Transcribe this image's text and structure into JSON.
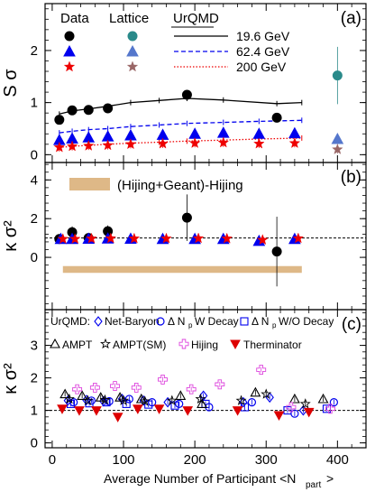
{
  "chart_data": [
    {
      "type": "scatter",
      "panel_label": "(a)",
      "ylabel": "S σ",
      "yticks": [
        "0",
        "1",
        "2"
      ],
      "ylim": [
        -0.15,
        2.9
      ],
      "xlim": [
        -10,
        440
      ],
      "legend": {
        "data_header": "Data",
        "lattice_header": "Lattice",
        "urqmd_header": "UrQMD",
        "energies": [
          "19.6 GeV",
          "62.4 GeV",
          "200 GeV"
        ]
      },
      "series": [
        {
          "name": "19.6 GeV",
          "source": "Data",
          "color": "#000000",
          "marker": "circle",
          "x": [
            10,
            28,
            51,
            78,
            189,
            315
          ],
          "y": [
            0.67,
            0.85,
            0.86,
            0.89,
            1.15,
            0.71
          ]
        },
        {
          "name": "62.4 GeV",
          "source": "Data",
          "color": "#0000ee",
          "marker": "triangle",
          "x": [
            10,
            28,
            51,
            78,
            110,
            155,
            200,
            240,
            290,
            340
          ],
          "y": [
            0.28,
            0.31,
            0.33,
            0.35,
            0.37,
            0.38,
            0.4,
            0.42,
            0.4,
            0.41
          ]
        },
        {
          "name": "200 GeV",
          "source": "Data",
          "color": "#ee0000",
          "marker": "star",
          "x": [
            10,
            28,
            51,
            78,
            110,
            155,
            200,
            240,
            290,
            340
          ],
          "y": [
            0.14,
            0.16,
            0.17,
            0.18,
            0.2,
            0.21,
            0.22,
            0.23,
            0.21,
            0.22
          ]
        },
        {
          "name": "19.6 GeV",
          "source": "Lattice",
          "color": "#2a8a8a",
          "marker": "circle",
          "x": [
            400
          ],
          "y": [
            1.52
          ],
          "yerr": [
            0.55
          ]
        },
        {
          "name": "62.4 GeV",
          "source": "Lattice",
          "color": "#5577cc",
          "marker": "triangle",
          "x": [
            400
          ],
          "y": [
            0.3
          ]
        },
        {
          "name": "200 GeV",
          "source": "Lattice",
          "color": "#996666",
          "marker": "star",
          "x": [
            400
          ],
          "y": [
            0.1
          ]
        }
      ],
      "lines": [
        {
          "name": "19.6 GeV",
          "source": "UrQMD",
          "color": "#000000",
          "dash": "solid",
          "x": [
            10,
            28,
            51,
            78,
            110,
            150,
            189,
            240,
            315,
            350
          ],
          "y": [
            0.78,
            0.84,
            0.88,
            0.93,
            1.0,
            1.04,
            1.08,
            1.05,
            0.98,
            1.0
          ]
        },
        {
          "name": "62.4 GeV",
          "source": "UrQMD",
          "color": "#0000ee",
          "dash": "dashed",
          "x": [
            10,
            28,
            51,
            78,
            110,
            150,
            189,
            240,
            290,
            350
          ],
          "y": [
            0.42,
            0.45,
            0.48,
            0.5,
            0.54,
            0.57,
            0.6,
            0.62,
            0.64,
            0.66
          ]
        },
        {
          "name": "200 GeV",
          "source": "UrQMD",
          "color": "#ee0000",
          "dash": "dotted",
          "x": [
            10,
            28,
            51,
            78,
            110,
            150,
            189,
            240,
            290,
            350
          ],
          "y": [
            0.14,
            0.16,
            0.18,
            0.2,
            0.22,
            0.24,
            0.26,
            0.28,
            0.3,
            0.32
          ]
        }
      ]
    },
    {
      "type": "scatter",
      "panel_label": "(b)",
      "ylabel": "κ σ²",
      "yticks": [
        "0",
        "2",
        "4"
      ],
      "ylim": [
        -2.7,
        4.9
      ],
      "xlim": [
        -10,
        440
      ],
      "reference_line": 1,
      "band": {
        "label": "(Hijing+Geant)-Hijing",
        "color": "#deb887",
        "x": [
          15,
          350
        ],
        "y": [
          -0.8,
          -0.45
        ]
      },
      "series": [
        {
          "name": "19.6 GeV",
          "color": "#000000",
          "marker": "circle",
          "x": [
            10,
            28,
            51,
            78,
            189,
            315
          ],
          "y": [
            0.95,
            1.3,
            1.0,
            1.35,
            2.05,
            0.3
          ],
          "yerr": [
            0.25,
            0.3,
            0.2,
            0.3,
            1.2,
            1.8
          ]
        },
        {
          "name": "62.4 GeV",
          "color": "#0000ee",
          "marker": "triangle",
          "x": [
            12,
            28,
            51,
            78,
            110,
            155,
            200,
            240,
            290,
            340
          ],
          "y": [
            0.95,
            0.95,
            0.96,
            0.97,
            0.96,
            0.95,
            0.95,
            0.95,
            0.85,
            0.95
          ]
        },
        {
          "name": "200 GeV",
          "color": "#ee0000",
          "marker": "star",
          "x": [
            15,
            32,
            55,
            82,
            115,
            160,
            205,
            245,
            295,
            345
          ],
          "y": [
            0.95,
            0.95,
            0.97,
            0.98,
            0.97,
            0.97,
            0.98,
            0.97,
            0.9,
            0.98
          ]
        }
      ]
    },
    {
      "type": "scatter",
      "panel_label": "(c)",
      "ylabel": "κ σ²",
      "yticks": [
        "0",
        "1",
        "2",
        "3"
      ],
      "ylim": [
        -0.15,
        4.1
      ],
      "xlim": [
        -10,
        440
      ],
      "xticks": [
        "0",
        "100",
        "200",
        "300",
        "400"
      ],
      "xlabel": "Average Number of Participant <N",
      "xlabel_sub": "part",
      "xlabel_end": ">",
      "reference_line": 1,
      "legend_header": "UrQMD:",
      "legend": [
        "Net-Baryon",
        "Δ N",
        "W Decay",
        "Δ N",
        "W/O Decay",
        "AMPT",
        "AMPT(SM)",
        "Hijing",
        "Therminator"
      ],
      "legend_sub": "p",
      "series": [
        {
          "name": "Net-Baryon",
          "color": "#0000ee",
          "marker": "diamond",
          "x": [
            22,
            48,
            72,
            98,
            128,
            162,
            212,
            268,
            305,
            352
          ],
          "y": [
            1.3,
            1.32,
            1.28,
            1.35,
            1.3,
            1.25,
            1.45,
            1.25,
            1.4,
            1.0
          ]
        },
        {
          "name": "Δ Np W Decay",
          "color": "#0000ee",
          "marker": "circle-open",
          "x": [
            30,
            55,
            80,
            108,
            140,
            178,
            220,
            280,
            340,
            395
          ],
          "y": [
            1.25,
            1.3,
            1.28,
            1.35,
            1.25,
            1.2,
            1.1,
            1.25,
            0.9,
            1.25
          ]
        },
        {
          "name": "Δ Np W/O Decay",
          "color": "#0000ee",
          "marker": "square-open",
          "x": [
            26,
            52,
            76,
            104,
            135,
            172,
            215,
            270,
            330,
            385
          ],
          "y": [
            1.2,
            1.22,
            1.25,
            1.2,
            1.18,
            1.15,
            1.2,
            1.1,
            1.0,
            1.05
          ]
        },
        {
          "name": "AMPT",
          "color": "#000000",
          "marker": "triangle-open",
          "x": [
            18,
            42,
            68,
            95,
            125,
            180,
            210,
            285,
            340,
            380
          ],
          "y": [
            1.5,
            1.45,
            1.4,
            1.4,
            1.35,
            1.45,
            1.2,
            1.55,
            1.35,
            1.35
          ]
        },
        {
          "name": "AMPT(SM)",
          "color": "#000000",
          "marker": "star-open",
          "x": [
            24,
            50,
            74,
            100,
            130,
            168,
            208,
            265,
            300,
            355
          ],
          "y": [
            1.35,
            1.3,
            1.32,
            1.3,
            1.28,
            1.3,
            1.35,
            1.3,
            1.5,
            1.2
          ]
        },
        {
          "name": "Hijing",
          "color": "#dd44dd",
          "marker": "cross-open",
          "x": [
            35,
            60,
            88,
            118,
            155,
            195,
            235,
            293,
            335,
            390
          ],
          "y": [
            1.65,
            1.7,
            1.75,
            1.7,
            1.95,
            1.65,
            1.8,
            2.25,
            1.1,
            1.05
          ]
        },
        {
          "name": "Therminator",
          "color": "#dd0000",
          "marker": "triangle-down",
          "x": [
            14,
            38,
            62,
            92,
            120,
            150,
            190,
            260,
            318,
            360
          ],
          "y": [
            1.05,
            1.0,
            1.0,
            0.8,
            1.05,
            1.05,
            1.0,
            1.0,
            0.85,
            0.95
          ]
        }
      ]
    }
  ]
}
